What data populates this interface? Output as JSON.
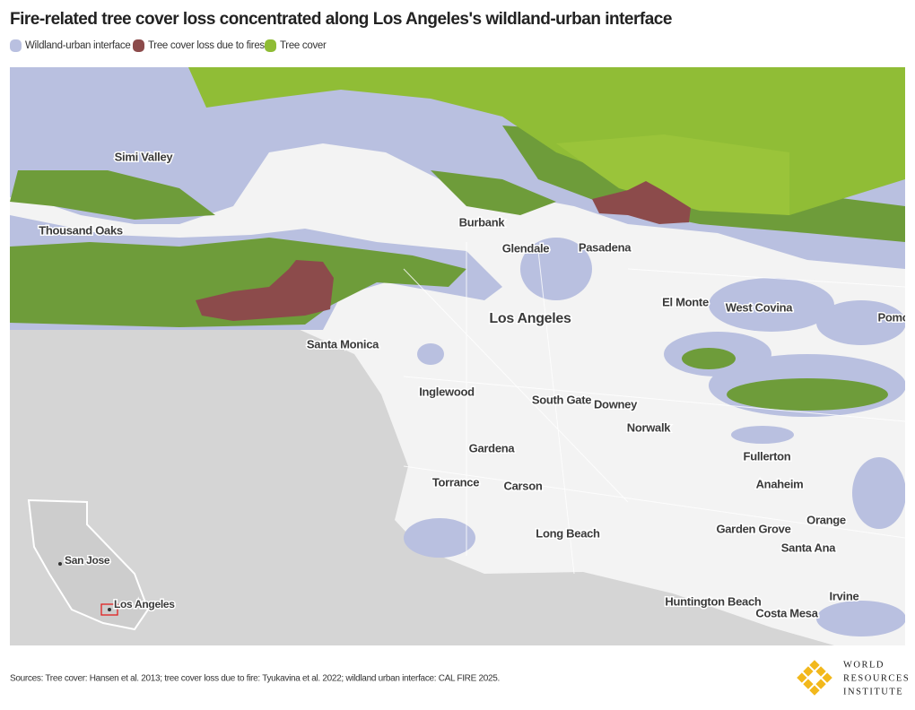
{
  "title": "Fire-related tree cover loss concentrated along Los Angeles's wildland-urban interface",
  "legend": [
    {
      "label": "Wildland-urban interface",
      "color": "#b9c0e0"
    },
    {
      "label": "Tree cover loss due to fires",
      "color": "#8c4b4b"
    },
    {
      "label": "Tree cover",
      "color": "#8fbc35"
    }
  ],
  "places": [
    "Simi Valley",
    "Thousand Oaks",
    "Burbank",
    "Glendale",
    "Pasadena",
    "Los Angeles",
    "El Monte",
    "West Covina",
    "Pomo",
    "Santa Monica",
    "Inglewood",
    "South Gate",
    "Downey",
    "Norwalk",
    "Fullerton",
    "Gardena",
    "Torrance",
    "Carson",
    "Anaheim",
    "Orange",
    "Garden Grove",
    "Santa Ana",
    "Long Beach",
    "Huntington Beach",
    "Irvine",
    "Costa Mesa"
  ],
  "inset": {
    "labels": [
      "San Jose",
      "Los Angeles"
    ]
  },
  "source": "Sources: Tree cover: Hansen et al. 2013; tree cover loss due to fire: Tyukavina et al. 2022; wildland urban interface: CAL FIRE 2025.",
  "logo": {
    "lines": [
      "WORLD",
      "RESOURCES",
      "INSTITUTE"
    ]
  }
}
